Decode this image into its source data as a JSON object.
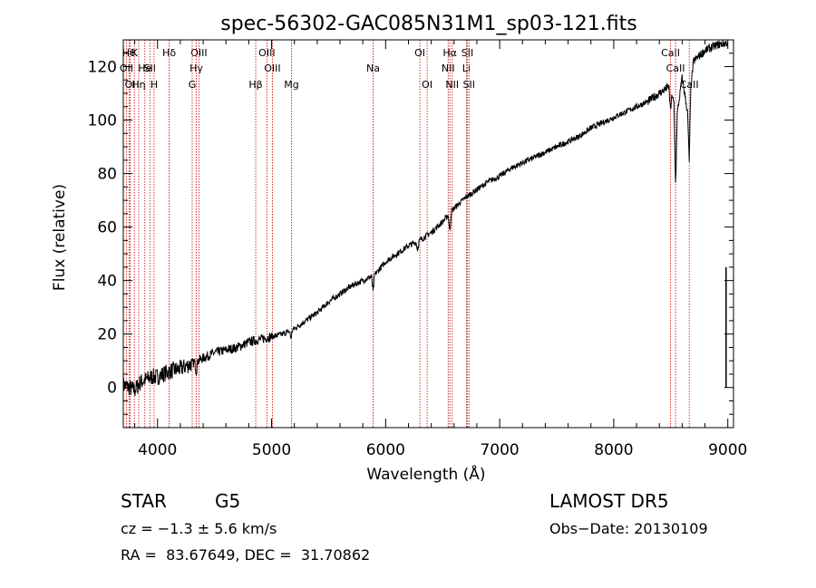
{
  "chart_data": {
    "type": "line",
    "title": "spec-56302-GAC085N31M1_sp03-121.fits",
    "xlabel": "Wavelength (Å)",
    "ylabel": "Flux (relative)",
    "xlim": [
      3700,
      9050
    ],
    "ylim": [
      -15,
      130
    ],
    "xticks": [
      4000,
      5000,
      6000,
      7000,
      8000,
      9000
    ],
    "yticks": [
      0,
      20,
      40,
      60,
      80,
      100,
      120
    ],
    "grid": false,
    "series": [
      {
        "x": [
          3700,
          3750,
          3800,
          3850,
          3900,
          3950,
          4000,
          4100,
          4200,
          4300,
          4400,
          4500,
          4600,
          4700,
          4800,
          4900,
          5000,
          5100,
          5200,
          5300,
          5400,
          5500,
          5600,
          5700,
          5800,
          5900,
          6000,
          6100,
          6200,
          6300,
          6400,
          6500,
          6600,
          6700,
          6800,
          6900,
          7000,
          7100,
          7200,
          7300,
          7400,
          7500,
          7600,
          7700,
          7800,
          7900,
          8000,
          8100,
          8200,
          8300,
          8400,
          8500,
          8550,
          8600,
          8650,
          8700,
          8800,
          8900,
          9000
        ],
        "y": [
          1,
          0,
          -1,
          2,
          3,
          4,
          4,
          6,
          7,
          9,
          11,
          13,
          14,
          15,
          17,
          18,
          19,
          20,
          22,
          25,
          28,
          32,
          35,
          38,
          40,
          42,
          47,
          50,
          53,
          55,
          58,
          62,
          67,
          71,
          74,
          77,
          79,
          82,
          84,
          86,
          88,
          90,
          92,
          94,
          97,
          99,
          101,
          103,
          105,
          107,
          110,
          113,
          100,
          116,
          102,
          122,
          126,
          128,
          129
        ]
      }
    ],
    "absorption_dips": [
      {
        "x": 4340,
        "depth": 4
      },
      {
        "x": 5170,
        "depth": 3
      },
      {
        "x": 5890,
        "depth": 6
      },
      {
        "x": 6280,
        "depth": 3
      },
      {
        "x": 6563,
        "depth": 7
      },
      {
        "x": 8498,
        "depth": 10
      },
      {
        "x": 8542,
        "depth": 26
      },
      {
        "x": 8662,
        "depth": 22
      }
    ],
    "edge_spike": {
      "x": 8985,
      "y_from": 0,
      "y_to": 45
    },
    "line_markers": [
      {
        "x": 3750,
        "label": "Hθ",
        "row": 0
      },
      {
        "x": 3797,
        "label": "K",
        "row": 0
      },
      {
        "x": 4102,
        "label": "Hδ",
        "row": 0
      },
      {
        "x": 4363,
        "label": "OIII",
        "row": 0
      },
      {
        "x": 4959,
        "label": "OIII",
        "row": 0
      },
      {
        "x": 6300,
        "label": "OI",
        "row": 0
      },
      {
        "x": 6563,
        "label": "Hα",
        "row": 0
      },
      {
        "x": 6717,
        "label": "SII",
        "row": 0
      },
      {
        "x": 8498,
        "label": "CaII",
        "row": 0
      },
      {
        "x": 3727,
        "label": "OII",
        "row": 1
      },
      {
        "x": 3889,
        "label": "He",
        "row": 1
      },
      {
        "x": 3933,
        "label": "SII",
        "row": 1
      },
      {
        "x": 4340,
        "label": "Hγ",
        "row": 1
      },
      {
        "x": 5007,
        "label": "OIII",
        "row": 1
      },
      {
        "x": 5890,
        "label": "Na",
        "row": 1
      },
      {
        "x": 6548,
        "label": "NII",
        "row": 1
      },
      {
        "x": 6708,
        "label": "Li",
        "row": 1
      },
      {
        "x": 8542,
        "label": "CaII",
        "row": 1
      },
      {
        "x": 3760,
        "label": "OI",
        "row": 2
      },
      {
        "x": 3835,
        "label": "Hη",
        "row": 2
      },
      {
        "x": 3970,
        "label": "H",
        "row": 2
      },
      {
        "x": 4304,
        "label": "G",
        "row": 2
      },
      {
        "x": 4861,
        "label": "Hβ",
        "row": 2
      },
      {
        "x": 5175,
        "label": "Mg",
        "row": 2
      },
      {
        "x": 6364,
        "label": "OI",
        "row": 2
      },
      {
        "x": 6584,
        "label": "NII",
        "row": 2
      },
      {
        "x": 6731,
        "label": "SII",
        "row": 2
      },
      {
        "x": 8662,
        "label": "CaII",
        "row": 2
      }
    ]
  },
  "info": {
    "object_class": "STAR",
    "subclass": "G5",
    "survey": "LAMOST DR5",
    "cz": "cz = −1.3 ± 5.6 km/s",
    "obs_date": "Obs−Date: 20130109",
    "coords": "RA =  83.67649, DEC =  31.70862"
  }
}
